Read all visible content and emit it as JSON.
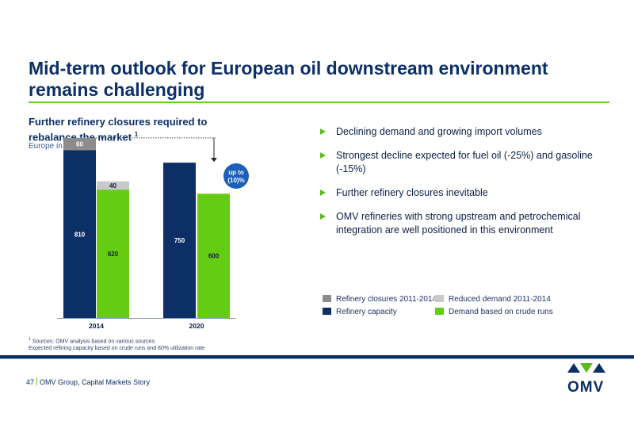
{
  "title": "Mid-term outlook for European oil downstream environment remains challenging",
  "chart_data": {
    "type": "bar",
    "subtitle": "Further refinery closures required to rebalance the market",
    "subtitle_footnote_mark": "1",
    "unit": "Europe in mn t",
    "categories": [
      "2014",
      "2020"
    ],
    "series": [
      {
        "name": "Refinery capacity",
        "color": "#0c2f68",
        "values": [
          810,
          750
        ]
      },
      {
        "name": "Refinery closures 2011-2014",
        "color": "#8c8c8c",
        "values": [
          60,
          null
        ],
        "stack_on": "Refinery capacity"
      },
      {
        "name": "Demand based on crude runs",
        "color": "#66cc11",
        "values": [
          620,
          600
        ]
      },
      {
        "name": "Reduced demand 2011-2014",
        "color": "#c8c8c8",
        "values": [
          40,
          null
        ],
        "stack_on": "Demand based on crude runs"
      }
    ],
    "ylim": [
      0,
      900
    ],
    "annotation": "up to (10)%"
  },
  "legend": [
    {
      "label": "Refinery closures 2011-2014",
      "color": "#8c8c8c"
    },
    {
      "label": "Reduced demand 2011-2014",
      "color": "#c8c8c8"
    },
    {
      "label": "Refinery capacity",
      "color": "#0c2f68"
    },
    {
      "label": "Demand based on crude runs",
      "color": "#66cc11"
    }
  ],
  "bullets": [
    "Declining demand and growing import volumes",
    "Strongest decline expected for fuel oil (-25%) and gasoline (-15%)",
    "Further refinery closures inevitable",
    "OMV refineries with strong upstream and petrochemical integration are well positioned in this environment"
  ],
  "footnote_mark": "1",
  "footnote_line1": "Sources: OMV analysis based on various sources",
  "footnote_line2": "Expected refining capacity based on crude runs and 80% utilization rate",
  "footer": {
    "page": "47",
    "text": "OMV Group, Capital Markets Story"
  },
  "logo_text": "OMV"
}
